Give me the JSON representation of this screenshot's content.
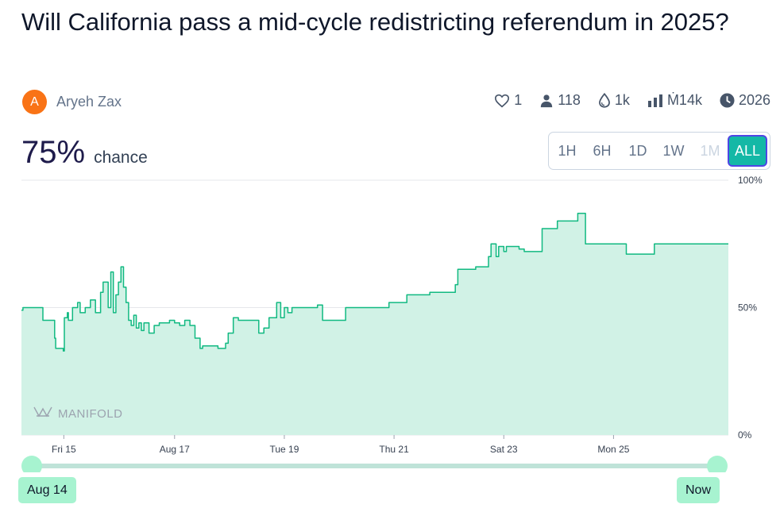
{
  "market": {
    "title": "Will California pass a mid-cycle redistricting referendum in 2025?",
    "author_initial": "A",
    "author_name": "Aryeh Zax",
    "probability": "75%",
    "probability_label": "chance"
  },
  "stats": {
    "likes": "1",
    "traders": "118",
    "liquidity": "1k",
    "volume": "Ṁ14k",
    "close_year": "2026"
  },
  "icons": [
    "heart-icon",
    "person-icon",
    "droplet-icon",
    "bar-chart-icon",
    "clock-icon"
  ],
  "time_ranges": [
    {
      "label": "1H",
      "state": "enabled"
    },
    {
      "label": "6H",
      "state": "enabled"
    },
    {
      "label": "1D",
      "state": "enabled"
    },
    {
      "label": "1W",
      "state": "enabled"
    },
    {
      "label": "1M",
      "state": "disabled"
    },
    {
      "label": "ALL",
      "state": "active"
    }
  ],
  "watermark": "MANIFOLD",
  "slider": {
    "start_label": "Aug 14",
    "end_label": "Now"
  },
  "colors": {
    "line": "#11b981",
    "fill": "#d1f2e6",
    "accent": "#14b8a6",
    "active_border": "#4f46e5",
    "avatar": "#f97316",
    "slider_handle": "#a7f3d0",
    "slider_track": "#bfe3d8"
  },
  "chart_data": {
    "type": "area",
    "step": true,
    "xlabel": "",
    "ylabel": "",
    "x_unit": "days (Aug 14 = 0)",
    "xlim": [
      0,
      13.85
    ],
    "ylim": [
      0,
      100
    ],
    "y_ticks": [
      {
        "value": 100,
        "label": "100%"
      },
      {
        "value": 50,
        "label": "50%"
      },
      {
        "value": 0,
        "label": "0%"
      }
    ],
    "x_ticks": [
      {
        "value": 0.83,
        "label": "Fri 15"
      },
      {
        "value": 3.0,
        "label": "Aug 17"
      },
      {
        "value": 5.15,
        "label": "Tue 19"
      },
      {
        "value": 7.3,
        "label": "Thu 21"
      },
      {
        "value": 9.45,
        "label": "Sat 23"
      },
      {
        "value": 11.6,
        "label": "Mon 25"
      }
    ],
    "series": [
      {
        "x": [
          0,
          0.03,
          0.4,
          0.42,
          0.65,
          0.67,
          0.82,
          0.84,
          0.9,
          0.92,
          1.0,
          1.1,
          1.15,
          1.25,
          1.35,
          1.45,
          1.55,
          1.6,
          1.7,
          1.75,
          1.8,
          1.85,
          1.9,
          1.95,
          2.0,
          2.05,
          2.1,
          2.15,
          2.2,
          2.25,
          2.3,
          2.35,
          2.4,
          2.5,
          2.6,
          2.7,
          2.8,
          2.9,
          3.0,
          3.1,
          3.2,
          3.3,
          3.4,
          3.5,
          3.55,
          3.85,
          4.0,
          4.05,
          4.15,
          4.25,
          4.35,
          4.65,
          4.75,
          4.85,
          5.0,
          5.08,
          5.15,
          5.22,
          5.3,
          5.5,
          5.8,
          5.9,
          6.3,
          6.35,
          7.1,
          7.2,
          7.55,
          8.0,
          8.5,
          8.55,
          8.9,
          9.1,
          9.15,
          9.2,
          9.3,
          9.35,
          9.45,
          9.5,
          9.75,
          9.85,
          10.2,
          10.3,
          10.5,
          10.75,
          10.9,
          10.95,
          11.05,
          11.3,
          11.85,
          12.35,
          12.4,
          13.85
        ],
        "y": [
          49,
          50,
          50,
          45,
          38,
          34,
          33,
          46,
          48,
          45,
          50,
          52,
          48,
          50,
          53,
          48,
          56,
          60,
          50,
          64,
          48,
          55,
          60,
          66,
          58,
          52,
          45,
          43,
          47,
          42,
          44,
          41,
          44,
          40,
          43,
          44,
          44,
          45,
          44,
          43,
          45,
          43,
          38,
          34,
          35,
          34,
          36,
          40,
          46,
          45,
          45,
          40,
          42,
          46,
          52,
          46,
          50,
          48,
          50,
          50,
          51,
          45,
          45,
          50,
          50,
          52,
          55,
          56,
          59,
          65,
          66,
          66,
          70,
          75,
          70,
          74,
          72,
          74,
          73,
          72,
          81,
          81,
          84,
          84,
          87,
          87,
          75,
          75,
          71,
          71,
          75,
          75
        ]
      }
    ]
  }
}
